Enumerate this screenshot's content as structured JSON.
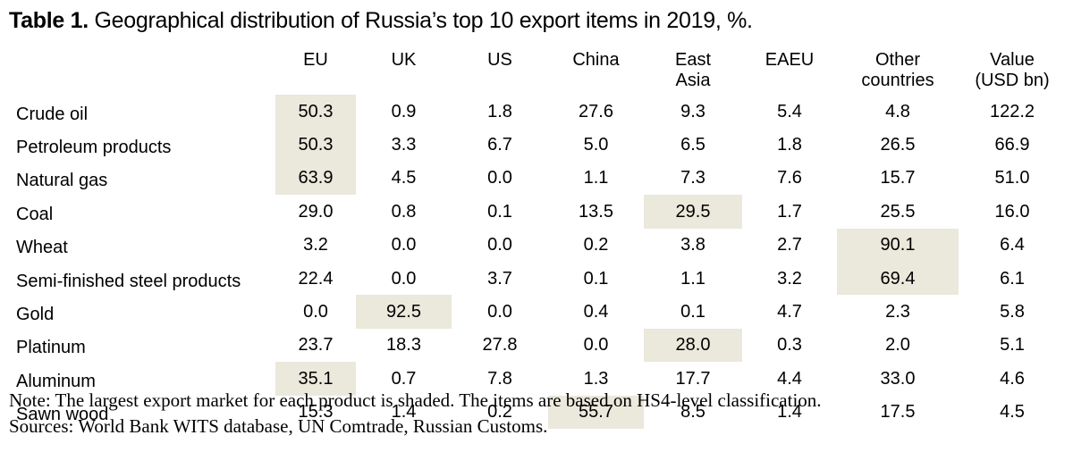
{
  "title": {
    "label": "Table 1.",
    "text": " Geographical distribution of Russia’s top 10 export items in 2019, %."
  },
  "table": {
    "columns": [
      {
        "key": "eu",
        "line1": "EU",
        "line2": ""
      },
      {
        "key": "uk",
        "line1": "UK",
        "line2": ""
      },
      {
        "key": "us",
        "line1": "US",
        "line2": ""
      },
      {
        "key": "china",
        "line1": "China",
        "line2": ""
      },
      {
        "key": "east_asia",
        "line1": "East",
        "line2": "Asia"
      },
      {
        "key": "eaeu",
        "line1": "EAEU",
        "line2": ""
      },
      {
        "key": "other",
        "line1": "Other",
        "line2": "countries"
      },
      {
        "key": "value",
        "line1": "Value",
        "line2": "(USD bn)"
      }
    ],
    "rows": [
      {
        "label": "Crude oil",
        "values": [
          "50.3",
          "0.9",
          "1.8",
          "27.6",
          "9.3",
          "5.4",
          "4.8",
          "122.2"
        ],
        "shaded": 0
      },
      {
        "label": "Petroleum products",
        "values": [
          "50.3",
          "3.3",
          "6.7",
          "5.0",
          "6.5",
          "1.8",
          "26.5",
          "66.9"
        ],
        "shaded": 0
      },
      {
        "label": "Natural gas",
        "values": [
          "63.9",
          "4.5",
          "0.0",
          "1.1",
          "7.3",
          "7.6",
          "15.7",
          "51.0"
        ],
        "shaded": 0
      },
      {
        "label": "Coal",
        "values": [
          "29.0",
          "0.8",
          "0.1",
          "13.5",
          "29.5",
          "1.7",
          "25.5",
          "16.0"
        ],
        "shaded": 4
      },
      {
        "label": "Wheat",
        "values": [
          "3.2",
          "0.0",
          "0.0",
          "0.2",
          "3.8",
          "2.7",
          "90.1",
          "6.4"
        ],
        "shaded": 6
      },
      {
        "label": "Semi-finished steel products",
        "values": [
          "22.4",
          "0.0",
          "3.7",
          "0.1",
          "1.1",
          "3.2",
          "69.4",
          "6.1"
        ],
        "shaded": 6
      },
      {
        "label": "Gold",
        "values": [
          "0.0",
          "92.5",
          "0.0",
          "0.4",
          "0.1",
          "4.7",
          "2.3",
          "5.8"
        ],
        "shaded": 1
      },
      {
        "label": "Platinum",
        "values": [
          "23.7",
          "18.3",
          "27.8",
          "0.0",
          "28.0",
          "0.3",
          "2.0",
          "5.1"
        ],
        "shaded": 4
      },
      {
        "label": "Aluminum",
        "values": [
          "35.1",
          "0.7",
          "7.8",
          "1.3",
          "17.7",
          "4.4",
          "33.0",
          "4.6"
        ],
        "shaded": 0
      },
      {
        "label": "Sawn wood",
        "values": [
          "15.3",
          "1.4",
          "0.2",
          "55.7",
          "8.5",
          "1.4",
          "17.5",
          "4.5"
        ],
        "shaded": 3
      }
    ]
  },
  "colors": {
    "shade": "#ebe8dc"
  },
  "notes": {
    "note": "Note: The largest export market for each product is shaded. The items are based on HS4-level classification.",
    "sources": "Sources: World Bank WITS database, UN Comtrade, Russian Customs."
  }
}
